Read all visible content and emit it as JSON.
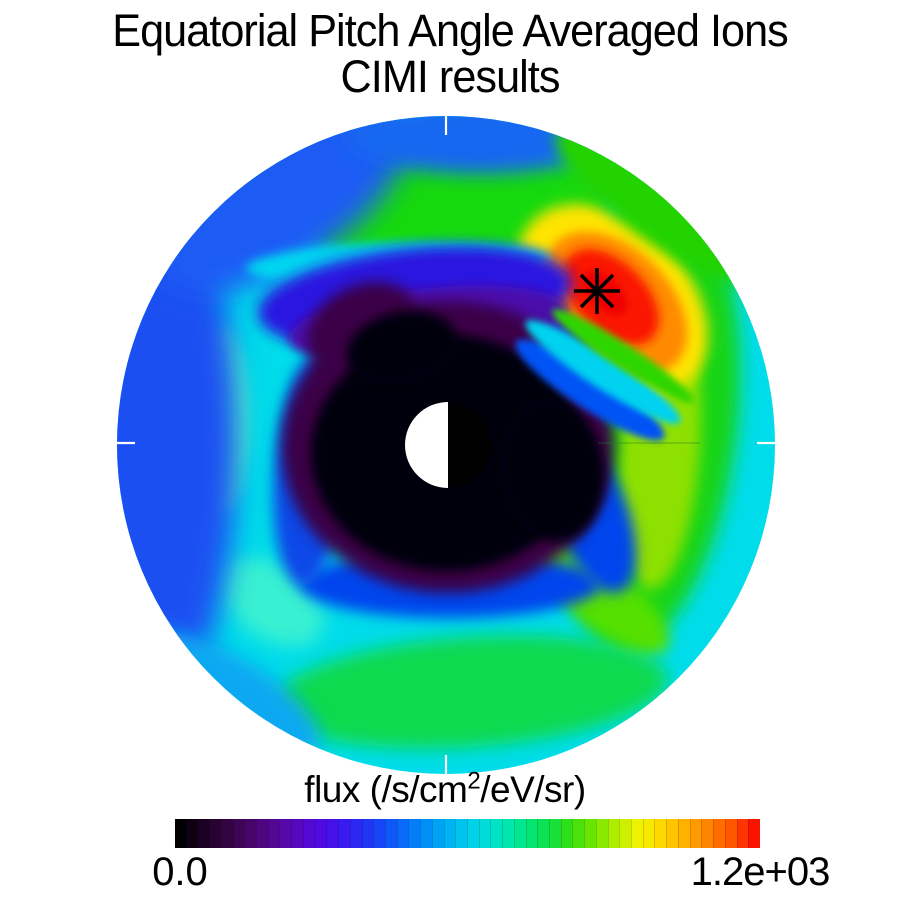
{
  "title": {
    "line1": "Equatorial Pitch Angle Averaged Ions",
    "line2": "CIMI results"
  },
  "colorbar": {
    "title_prefix": "flux (/s/cm",
    "title_sup": "2",
    "title_suffix": "/eV/sr)",
    "min_label": "0.0",
    "max_label": "1.2e+03",
    "segments": 50,
    "stops": [
      "#000000",
      "#1c0022",
      "#33033f",
      "#470567",
      "#53078f",
      "#5808bb",
      "#5109e0",
      "#3d17ef",
      "#2430f5",
      "#1250f7",
      "#0675f8",
      "#009af6",
      "#00bdf2",
      "#00d9e4",
      "#00e5bb",
      "#00e785",
      "#0ce14b",
      "#35df13",
      "#71e600",
      "#b4ee00",
      "#f2f400",
      "#ffd700",
      "#ffae00",
      "#ff8200",
      "#ff5500",
      "#fa1400"
    ]
  },
  "plot": {
    "background": "#ffffff",
    "tick_color": "#ffffff",
    "marker_color": "#000000",
    "earth_dayside_color": "#ffffff",
    "earth_nightside_color": "#000000"
  },
  "chart_data": {
    "type": "heatmap",
    "projection": "polar equatorial-plane dial, Earth at center, filled-contour flux map clipped to a circle",
    "title": "Equatorial Pitch Angle Averaged Ions",
    "subtitle": "CIMI results",
    "colorbar_label": "flux (/s/cm²/eV/sr)",
    "flux_min": 0.0,
    "flux_max": 1200,
    "flux_min_label": "0.0",
    "flux_max_label": "1.2e+03",
    "colormap": "rainbow: black → dark purple → violet → blue → cyan → green → yellow → orange → red",
    "axis_ticks": [
      "top (12:00)",
      "right",
      "bottom (06:00)",
      "left"
    ],
    "earth_symbol": {
      "description": "disk at origin, left half white (dayside), right half black (nightside)",
      "radius_fraction_of_outer_boundary": 0.13
    },
    "marker": {
      "symbol": "asterisk",
      "color": "#000000",
      "radius_fraction_of_outer_boundary": 0.66,
      "direction": "upper right, ~45° above horizontal",
      "located_in": "peak-flux red hotspot"
    },
    "features": [
      {
        "region": "inner core surrounding Earth",
        "color": "black with dark-purple fringe",
        "approx_flux": "0–100",
        "shape": "kidney-shaped, slightly offset from center"
      },
      {
        "region": "ring along top/left of core",
        "color": "violet → indigo → blue",
        "approx_flux": "150–350"
      },
      {
        "region": "left (dawn-side) shell",
        "color": "cyan with pale aquamarine patch",
        "approx_flux": "400–550"
      },
      {
        "region": "outer rim, left and top",
        "color": "blue band",
        "approx_flux": "250–350"
      },
      {
        "region": "spiral arm from bottom around right side",
        "color": "green with yellow-green streaks",
        "approx_flux": "600–800"
      },
      {
        "region": "upper-right hotspot around asterisk",
        "color": "yellow → orange → red",
        "approx_flux": "900–1200"
      },
      {
        "region": "wedge separating hotspot from dark core",
        "color": "blue/cyan/green channel",
        "approx_flux": "~400–600"
      }
    ]
  }
}
